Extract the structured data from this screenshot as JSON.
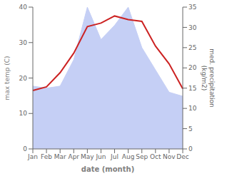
{
  "chart_data": {
    "type": "line",
    "categories": [
      "Jan",
      "Feb",
      "Mar",
      "Apr",
      "May",
      "Jun",
      "Jul",
      "Aug",
      "Sep",
      "Oct",
      "Nov",
      "Dec"
    ],
    "series": [
      {
        "type": "area",
        "axis": "y2",
        "color": "#c5cff5",
        "values": [
          15.5,
          15.0,
          15.5,
          22.0,
          35.0,
          27.0,
          30.5,
          35.0,
          25.0,
          19.5,
          14.0,
          13.0
        ]
      },
      {
        "type": "line",
        "color": "#cc2222",
        "values": [
          16.5,
          17.5,
          21.5,
          27.0,
          34.5,
          35.5,
          37.5,
          36.5,
          36.0,
          29.0,
          24.0,
          17.0
        ]
      }
    ],
    "xlabel": "date (month)",
    "ylabel": "max temp (C)",
    "y2label": "med. precipitation\n(kg/m2)",
    "ylim": [
      0,
      40
    ],
    "yticks": [
      0,
      10,
      20,
      30,
      40
    ],
    "y2lim": [
      0,
      35
    ],
    "y2ticks": [
      0,
      5,
      10,
      15,
      20,
      25,
      30,
      35
    ],
    "grid": false
  }
}
